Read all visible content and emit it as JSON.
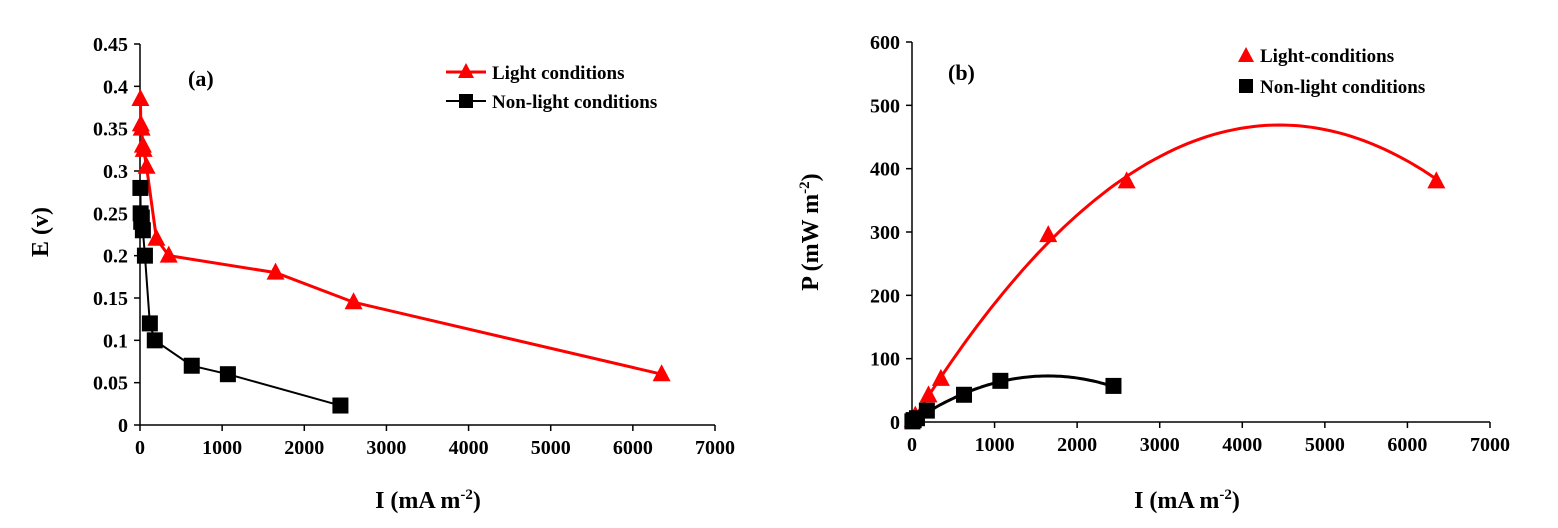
{
  "colors": {
    "light": "#ff0000",
    "dark": "#000000",
    "axis": "#000000"
  },
  "chart_data": [
    {
      "type": "line",
      "panel_label": "(a)",
      "xlabel": "I (mA m",
      "xlabel_sup": "-2",
      "xlabel_close": ")",
      "ylabel": "E (v)",
      "xlim": [
        0,
        7000
      ],
      "ylim": [
        0,
        0.45
      ],
      "x_ticks": [
        "0",
        "1000",
        "2000",
        "3000",
        "4000",
        "5000",
        "6000",
        "7000"
      ],
      "y_ticks": [
        "0",
        "0.05",
        "0.1",
        "0.15",
        "0.2",
        "0.25",
        "0.3",
        "0.35",
        "0.4",
        "0.45"
      ],
      "grid": false,
      "legend_position": "top-right",
      "series": [
        {
          "name": "Light conditions",
          "marker": "triangle",
          "color": "#ff0000",
          "x": [
            5,
            10,
            20,
            35,
            45,
            80,
            200,
            350,
            1650,
            2600,
            6350
          ],
          "y": [
            0.385,
            0.355,
            0.35,
            0.33,
            0.325,
            0.305,
            0.22,
            0.2,
            0.18,
            0.145,
            0.06
          ]
        },
        {
          "name": "Non-light conditions",
          "marker": "square",
          "color": "#000000",
          "x": [
            5,
            8,
            15,
            22,
            35,
            60,
            120,
            180,
            630,
            1070,
            2440
          ],
          "y": [
            0.28,
            0.25,
            0.24,
            0.245,
            0.23,
            0.2,
            0.12,
            0.1,
            0.07,
            0.06,
            0.023
          ]
        }
      ]
    },
    {
      "type": "scatter",
      "panel_label": "(b)",
      "xlabel": "I (mA m",
      "xlabel_sup": "-2",
      "xlabel_close": ")",
      "ylabel": "P (mW m",
      "ylabel_sup": "-2",
      "ylabel_close": ")",
      "xlim": [
        0,
        7000
      ],
      "ylim": [
        0,
        600
      ],
      "x_ticks": [
        "0",
        "1000",
        "2000",
        "3000",
        "4000",
        "5000",
        "6000",
        "7000"
      ],
      "y_ticks": [
        "0",
        "100",
        "200",
        "300",
        "400",
        "500",
        "600"
      ],
      "grid": false,
      "legend_position": "top-right",
      "series": [
        {
          "name": "Light-conditions",
          "marker": "triangle",
          "color": "#ff0000",
          "x": [
            10,
            40,
            200,
            350,
            1650,
            2600,
            6350
          ],
          "y": [
            3,
            10,
            42,
            68,
            295,
            380,
            380
          ],
          "trend": {
            "kind": "poly2",
            "coef": [
              0,
              0.2107,
              -2.367e-05
            ],
            "x_range": [
              0,
              6350
            ]
          }
        },
        {
          "name": "Non-light conditions",
          "marker": "square",
          "color": "#000000",
          "x": [
            5,
            20,
            60,
            180,
            630,
            1070,
            2440
          ],
          "y": [
            1,
            3,
            6,
            18,
            43,
            65,
            57
          ],
          "trend": {
            "kind": "poly2",
            "coef": [
              0,
              0.0883,
              -2.68e-05
            ],
            "x_range": [
              0,
              2440
            ]
          }
        }
      ]
    }
  ]
}
